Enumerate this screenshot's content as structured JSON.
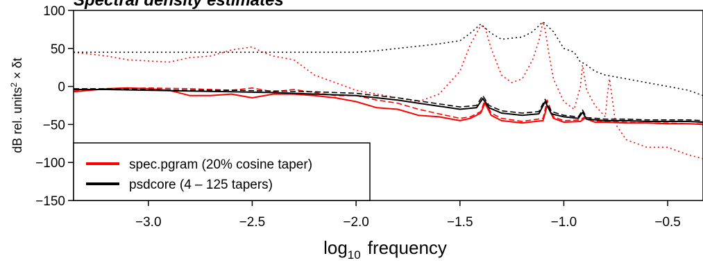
{
  "chart_data": {
    "type": "line",
    "title": "Spectral density estimates",
    "xlabel": "frequency",
    "xlabel_prefix": "log",
    "xlabel_subscript": "10",
    "ylabel": "dB rel. units² × δt",
    "ylabel_parts": {
      "pre": "dB rel. units",
      "sup": "2",
      "post": " × δt"
    },
    "xlim": [
      -3.36,
      -0.33
    ],
    "ylim": [
      -150,
      100
    ],
    "xticks": [
      -3.0,
      -2.5,
      -2.0,
      -1.5,
      -1.0,
      -0.5
    ],
    "xtick_labels": [
      "−3.0",
      "−2.5",
      "−2.0",
      "−1.5",
      "−1.0",
      "−0.5"
    ],
    "yticks": [
      -150,
      -100,
      -50,
      0,
      50,
      100
    ],
    "ytick_labels": [
      "−150",
      "−100",
      "−50",
      "0",
      "50",
      "100"
    ],
    "grid": false,
    "legend_position": "bottom-left",
    "colors": {
      "pgram": "#ff0000",
      "psdcore": "#000000"
    },
    "series": [
      {
        "name": "spec.pgram (20% cosine taper)",
        "color": "#ff0000",
        "style": "solid",
        "x": [
          -3.36,
          -3.2,
          -3.1,
          -3.0,
          -2.9,
          -2.8,
          -2.7,
          -2.6,
          -2.5,
          -2.4,
          -2.3,
          -2.2,
          -2.1,
          -2.0,
          -1.9,
          -1.8,
          -1.7,
          -1.6,
          -1.5,
          -1.45,
          -1.4,
          -1.38,
          -1.35,
          -1.3,
          -1.2,
          -1.1,
          -1.08,
          -1.05,
          -1.0,
          -0.92,
          -0.9,
          -0.85,
          -0.8,
          -0.7,
          -0.6,
          -0.5,
          -0.4,
          -0.33
        ],
        "y": [
          -7,
          -3,
          -2,
          -3,
          -5,
          -12,
          -12,
          -10,
          -15,
          -10,
          -10,
          -12,
          -15,
          -20,
          -28,
          -30,
          -38,
          -40,
          -45,
          -42,
          -35,
          -22,
          -38,
          -45,
          -48,
          -45,
          -25,
          -42,
          -47,
          -46,
          -42,
          -47,
          -47,
          -48,
          -48,
          -49,
          -49,
          -50
        ]
      },
      {
        "name": "",
        "color": "#ff0000",
        "style": "dashed",
        "x": [
          -3.36,
          -3.2,
          -3.0,
          -2.8,
          -2.6,
          -2.5,
          -2.4,
          -2.3,
          -2.2,
          -2.1,
          -2.0,
          -1.9,
          -1.8,
          -1.7,
          -1.6,
          -1.5,
          -1.45,
          -1.4,
          -1.38,
          -1.35,
          -1.3,
          -1.2,
          -1.1,
          -1.08,
          -1.05,
          -1.0,
          -0.92,
          -0.9,
          -0.85,
          -0.8,
          -0.7,
          -0.6,
          -0.5,
          -0.4,
          -0.33
        ],
        "y": [
          -6,
          -3,
          -2,
          -3,
          -5,
          -2,
          -7,
          -4,
          -8,
          -12,
          -12,
          -18,
          -22,
          -30,
          -36,
          -42,
          -40,
          -33,
          -18,
          -35,
          -42,
          -46,
          -42,
          -18,
          -40,
          -45,
          -44,
          -40,
          -45,
          -46,
          -47,
          -48,
          -48,
          -49,
          -49
        ]
      },
      {
        "name": "",
        "color": "#ff0000",
        "style": "dotted",
        "x": [
          -3.36,
          -3.2,
          -3.1,
          -2.9,
          -2.8,
          -2.7,
          -2.6,
          -2.55,
          -2.5,
          -2.45,
          -2.4,
          -2.3,
          -2.25,
          -2.2,
          -2.1,
          -2.0,
          -1.9,
          -1.8,
          -1.7,
          -1.6,
          -1.5,
          -1.45,
          -1.42,
          -1.4,
          -1.38,
          -1.35,
          -1.3,
          -1.25,
          -1.2,
          -1.15,
          -1.12,
          -1.1,
          -1.09,
          -1.07,
          -1.05,
          -1.0,
          -0.95,
          -0.92,
          -0.91,
          -0.89,
          -0.85,
          -0.8,
          -0.79,
          -0.78,
          -0.75,
          -0.7,
          -0.6,
          -0.5,
          -0.4,
          -0.33
        ],
        "y": [
          45,
          40,
          35,
          32,
          38,
          40,
          48,
          50,
          52,
          45,
          40,
          35,
          25,
          15,
          5,
          -5,
          -10,
          -15,
          -20,
          -10,
          20,
          55,
          70,
          80,
          78,
          50,
          15,
          5,
          10,
          35,
          60,
          85,
          75,
          40,
          10,
          -20,
          -30,
          0,
          28,
          -5,
          -25,
          -40,
          -10,
          10,
          -50,
          -70,
          -80,
          -80,
          -90,
          -95
        ]
      },
      {
        "name": "psdcore (4 – 125 tapers)",
        "color": "#000000",
        "style": "solid",
        "x": [
          -3.36,
          -3.2,
          -3.0,
          -2.8,
          -2.6,
          -2.4,
          -2.2,
          -2.0,
          -1.9,
          -1.8,
          -1.7,
          -1.6,
          -1.5,
          -1.42,
          -1.39,
          -1.36,
          -1.3,
          -1.2,
          -1.12,
          -1.09,
          -1.06,
          -1.0,
          -0.93,
          -0.91,
          -0.89,
          -0.8,
          -0.7,
          -0.6,
          -0.5,
          -0.4,
          -0.33
        ],
        "y": [
          -4,
          -4,
          -5,
          -6,
          -7,
          -8,
          -10,
          -12,
          -15,
          -18,
          -22,
          -26,
          -30,
          -28,
          -16,
          -28,
          -35,
          -38,
          -36,
          -20,
          -36,
          -40,
          -42,
          -34,
          -43,
          -45,
          -45,
          -46,
          -46,
          -46,
          -47
        ]
      },
      {
        "name": "",
        "color": "#000000",
        "style": "dashed",
        "x": [
          -3.36,
          -3.2,
          -3.0,
          -2.8,
          -2.6,
          -2.4,
          -2.2,
          -2.0,
          -1.9,
          -1.8,
          -1.7,
          -1.6,
          -1.5,
          -1.42,
          -1.39,
          -1.36,
          -1.3,
          -1.2,
          -1.12,
          -1.09,
          -1.06,
          -1.0,
          -0.93,
          -0.91,
          -0.89,
          -0.8,
          -0.7,
          -0.6,
          -0.5,
          -0.4,
          -0.33
        ],
        "y": [
          -3,
          -3,
          -4,
          -5,
          -5,
          -6,
          -7,
          -9,
          -12,
          -15,
          -19,
          -23,
          -27,
          -25,
          -12,
          -25,
          -32,
          -35,
          -33,
          -17,
          -33,
          -38,
          -40,
          -31,
          -41,
          -43,
          -43,
          -44,
          -44,
          -44,
          -45
        ]
      },
      {
        "name": "",
        "color": "#000000",
        "style": "dotted",
        "x": [
          -3.36,
          -3.2,
          -3.0,
          -2.8,
          -2.6,
          -2.4,
          -2.2,
          -2.0,
          -1.9,
          -1.8,
          -1.7,
          -1.6,
          -1.5,
          -1.45,
          -1.4,
          -1.35,
          -1.3,
          -1.2,
          -1.15,
          -1.1,
          -1.05,
          -1.0,
          -0.95,
          -0.92,
          -0.9,
          -0.85,
          -0.8,
          -0.7,
          -0.6,
          -0.5,
          -0.4,
          -0.33
        ],
        "y": [
          45,
          45,
          45,
          45,
          45,
          45,
          45,
          45,
          47,
          50,
          53,
          56,
          60,
          70,
          82,
          70,
          62,
          65,
          72,
          85,
          72,
          50,
          45,
          32,
          30,
          20,
          15,
          10,
          5,
          0,
          -5,
          -12
        ]
      }
    ],
    "legend": [
      {
        "label": "spec.pgram (20% cosine taper)",
        "color": "#ff0000"
      },
      {
        "label": "psdcore (4 – 125 tapers)",
        "color": "#000000"
      }
    ]
  }
}
